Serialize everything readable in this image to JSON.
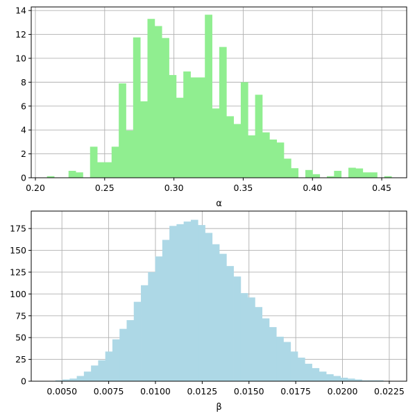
{
  "chart_data": [
    {
      "type": "bar",
      "subtype": "histogram",
      "xlabel": "α",
      "ylabel": "",
      "title": "",
      "color": "#90ee90",
      "grid": true,
      "xlim": [
        0.197,
        0.468
      ],
      "ylim": [
        0,
        14.3
      ],
      "xticks": [
        0.2,
        0.25,
        0.3,
        0.35,
        0.4,
        0.45
      ],
      "xtick_labels": [
        "0.20",
        "0.25",
        "0.30",
        "0.35",
        "0.40",
        "0.45"
      ],
      "yticks": [
        0,
        2,
        4,
        6,
        8,
        10,
        12,
        14
      ],
      "ytick_labels": [
        "0",
        "2",
        "4",
        "6",
        "8",
        "10",
        "12",
        "14"
      ],
      "bin_start": 0.2032,
      "bin_width": 0.00518,
      "values": [
        0.0,
        0.13,
        0.0,
        0.0,
        0.58,
        0.45,
        0.0,
        2.6,
        1.3,
        1.3,
        2.6,
        7.9,
        3.95,
        11.75,
        6.4,
        13.3,
        12.7,
        11.7,
        8.6,
        6.7,
        8.9,
        8.4,
        8.4,
        13.65,
        5.8,
        10.95,
        5.15,
        4.5,
        8.0,
        3.55,
        6.95,
        3.8,
        3.2,
        2.95,
        1.6,
        0.8,
        0.0,
        0.65,
        0.3,
        0.0,
        0.13,
        0.58,
        0.0,
        0.84,
        0.78,
        0.45,
        0.45,
        0.0,
        0.13
      ]
    },
    {
      "type": "bar",
      "subtype": "histogram",
      "xlabel": "β",
      "ylabel": "",
      "title": "",
      "color": "#add8e6",
      "grid": true,
      "xlim": [
        0.00336,
        0.02343
      ],
      "ylim": [
        0,
        195
      ],
      "xticks": [
        0.005,
        0.0075,
        0.01,
        0.0125,
        0.015,
        0.0175,
        0.02,
        0.0225
      ],
      "xtick_labels": [
        "0.0050",
        "0.0075",
        "0.0100",
        "0.0125",
        "0.0150",
        "0.0175",
        "0.0200",
        "0.0225"
      ],
      "yticks": [
        0,
        25,
        50,
        75,
        100,
        125,
        150,
        175
      ],
      "ytick_labels": [
        "0",
        "25",
        "50",
        "75",
        "100",
        "125",
        "150",
        "175"
      ],
      "bin_start": 0.00427,
      "bin_width": 0.000381,
      "values": [
        0,
        1,
        2,
        3,
        6,
        11,
        18,
        24,
        34,
        48,
        60,
        70,
        91,
        110,
        125,
        143,
        162,
        178,
        180,
        183,
        185,
        179,
        170,
        157,
        146,
        132,
        120,
        101,
        96,
        85,
        72,
        62,
        51,
        45,
        34,
        27,
        20,
        15,
        11,
        8,
        6,
        4,
        3,
        2,
        1,
        1,
        1,
        0,
        0,
        0,
        0,
        0
      ]
    }
  ]
}
